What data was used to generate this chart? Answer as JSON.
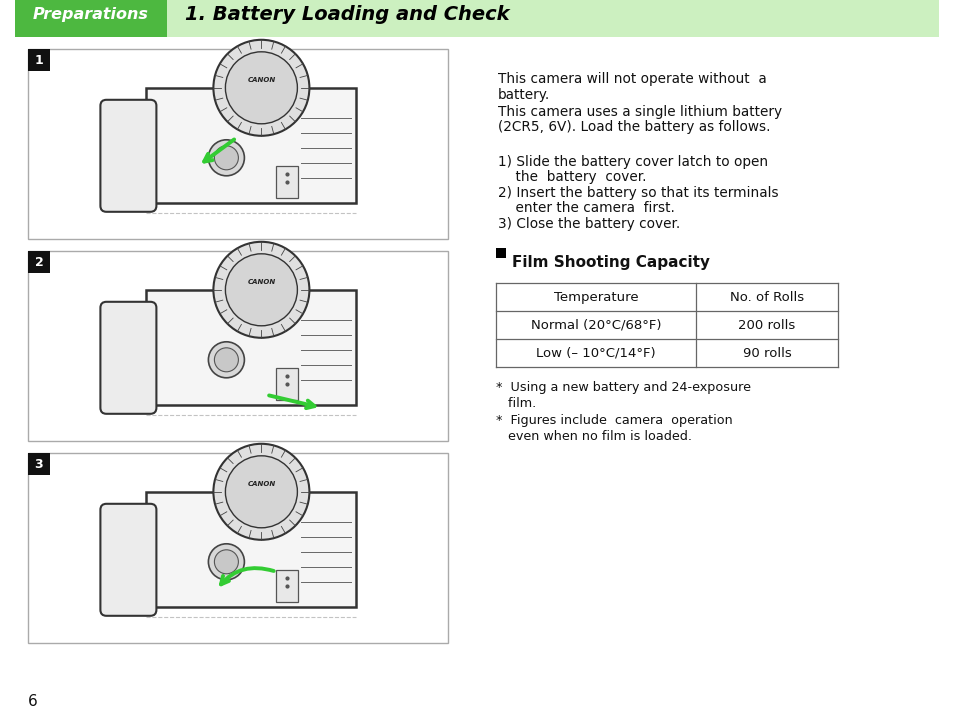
{
  "bg_color": "#ffffff",
  "header_bar_color": "#ccf0c0",
  "header_label_bg": "#4db840",
  "header_label_text": "Preparations",
  "header_label_color": "#ffffff",
  "header_title": "1. Battery Loading and Check",
  "header_title_color": "#000000",
  "body_lines": [
    [
      "This camera will not operate without  a",
      false
    ],
    [
      "battery.",
      false
    ],
    [
      "This camera uses a single lithium battery",
      false
    ],
    [
      "(2CR5, 6V). Load the battery as follows.",
      false
    ]
  ],
  "steps": [
    [
      "1) Slide the battery cover latch to open",
      "   the battery cover."
    ],
    [
      "2) Insert the battery so that its terminals",
      "   enter the camera  first."
    ],
    [
      "3) Close the battery cover.",
      ""
    ]
  ],
  "table_title": "Film Shooting Capacity",
  "table_headers": [
    "Temperature",
    "No. of Rolls"
  ],
  "table_rows": [
    [
      "Normal (20°C/68°F)",
      "200 rolls"
    ],
    [
      "Low (– 10°C/14°F)",
      "90 rolls"
    ]
  ],
  "footnotes": [
    [
      "*  Using a new battery and 24-exposure",
      "   film."
    ],
    [
      "*  Figures include  camera  operation",
      "   even when no film is loaded."
    ]
  ],
  "page_number": "6",
  "text_color": "#111111",
  "table_border_color": "#666666",
  "panel_labels": [
    "1",
    "2",
    "3"
  ]
}
